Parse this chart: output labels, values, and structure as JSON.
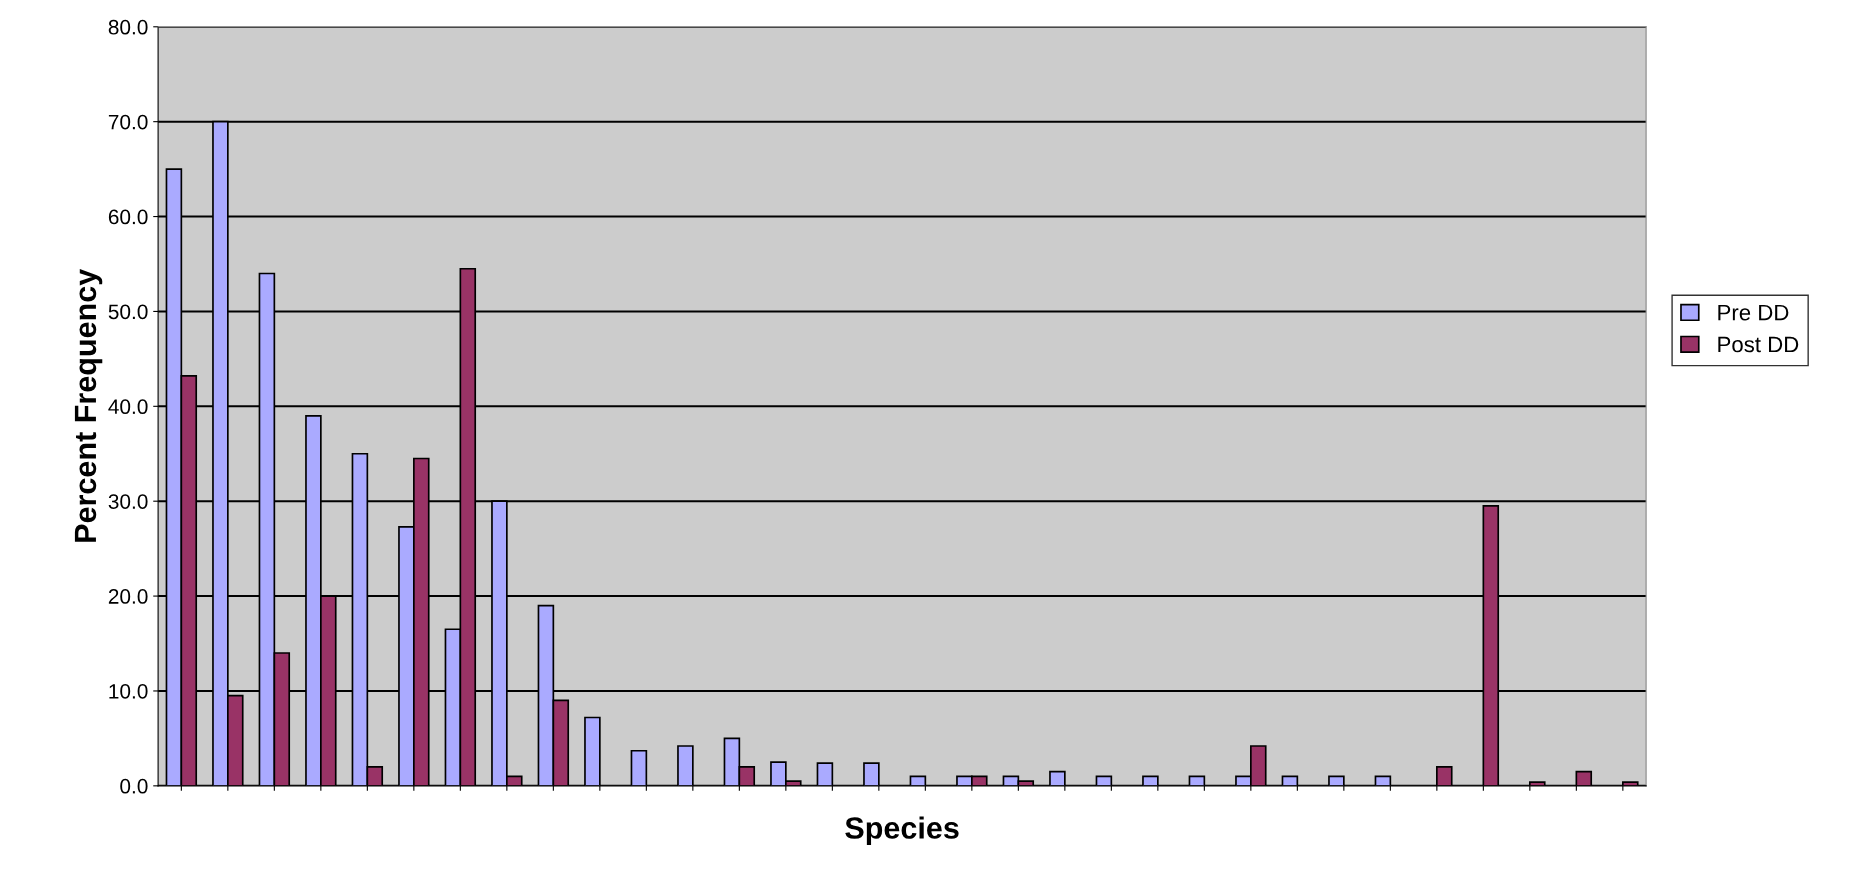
{
  "chart_data": {
    "type": "bar",
    "xlabel": "Species",
    "ylabel": "Percent Frequency",
    "categories": [
      null,
      null,
      null,
      null,
      null,
      null,
      null,
      null,
      null,
      null,
      null,
      null,
      null,
      null,
      null,
      null,
      null,
      null,
      null,
      null,
      null,
      null,
      null,
      null,
      null,
      null,
      null,
      null,
      null,
      null,
      null,
      null
    ],
    "series": [
      {
        "name": "Pre DD",
        "color": "#aaaaff",
        "values": [
          65,
          70,
          54,
          39,
          35,
          27.3,
          16.5,
          30,
          19,
          7.2,
          3.7,
          4.2,
          5,
          2.5,
          2.4,
          2.4,
          1,
          1,
          1,
          1.5,
          1,
          1,
          1,
          1,
          1,
          1,
          1,
          0,
          0,
          0,
          0,
          0
        ]
      },
      {
        "name": "Post DD",
        "color": "#993366",
        "values": [
          43.2,
          9.5,
          14,
          20,
          2,
          34.5,
          54.5,
          1,
          9,
          0,
          0,
          0,
          2,
          0.5,
          0,
          0,
          0,
          1,
          0.5,
          0,
          0,
          0,
          0,
          4.2,
          0,
          0,
          0,
          2,
          29.5,
          0.4,
          1.5,
          0.4
        ]
      }
    ],
    "ylim": [
      0,
      80
    ],
    "yticks": [
      {
        "value": 0,
        "label": "0.0"
      },
      {
        "value": 10,
        "label": "10.0"
      },
      {
        "value": 20,
        "label": "20.0"
      },
      {
        "value": 30,
        "label": "30.0"
      },
      {
        "value": 40,
        "label": "40.0"
      },
      {
        "value": 50,
        "label": "50.0"
      },
      {
        "value": 60,
        "label": "60.0"
      },
      {
        "value": 70,
        "label": "70.0"
      },
      {
        "value": 80,
        "label": "80.0"
      }
    ],
    "grid": "y",
    "legend": "right"
  }
}
